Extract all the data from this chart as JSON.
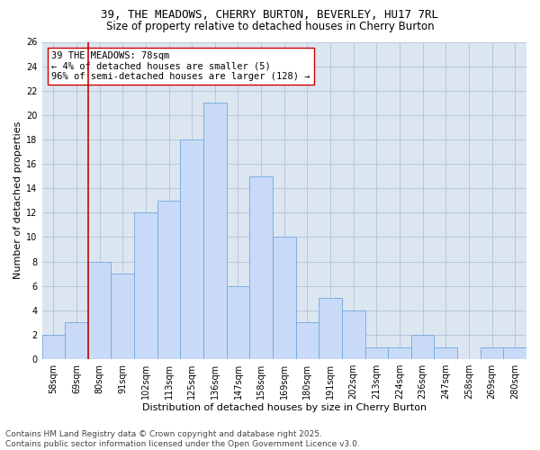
{
  "title": "39, THE MEADOWS, CHERRY BURTON, BEVERLEY, HU17 7RL",
  "subtitle": "Size of property relative to detached houses in Cherry Burton",
  "xlabel": "Distribution of detached houses by size in Cherry Burton",
  "ylabel": "Number of detached properties",
  "bar_values": [
    2,
    3,
    8,
    7,
    12,
    13,
    18,
    21,
    6,
    15,
    10,
    3,
    5,
    4,
    1,
    1,
    2,
    1,
    0,
    1,
    1
  ],
  "bar_labels": [
    "58sqm",
    "69sqm",
    "80sqm",
    "91sqm",
    "102sqm",
    "113sqm",
    "125sqm",
    "136sqm",
    "147sqm",
    "158sqm",
    "169sqm",
    "180sqm",
    "191sqm",
    "202sqm",
    "213sqm",
    "224sqm",
    "236sqm",
    "247sqm",
    "258sqm",
    "269sqm",
    "280sqm"
  ],
  "bar_color": "#c9daf8",
  "bar_edge_color": "#6fa8dc",
  "grid_color": "#b8c7d9",
  "background_color": "#dce6f1",
  "vline_color": "#cc0000",
  "annotation_text": "39 THE MEADOWS: 78sqm\n← 4% of detached houses are smaller (5)\n96% of semi-detached houses are larger (128) →",
  "annotation_box_color": "#ffffff",
  "annotation_box_edge_color": "#cc0000",
  "ylim": [
    0,
    26
  ],
  "yticks": [
    0,
    2,
    4,
    6,
    8,
    10,
    12,
    14,
    16,
    18,
    20,
    22,
    24,
    26
  ],
  "footer_text": "Contains HM Land Registry data © Crown copyright and database right 2025.\nContains public sector information licensed under the Open Government Licence v3.0.",
  "title_fontsize": 9,
  "subtitle_fontsize": 8.5,
  "xlabel_fontsize": 8,
  "ylabel_fontsize": 8,
  "tick_fontsize": 7,
  "annotation_fontsize": 7.5,
  "footer_fontsize": 6.5
}
